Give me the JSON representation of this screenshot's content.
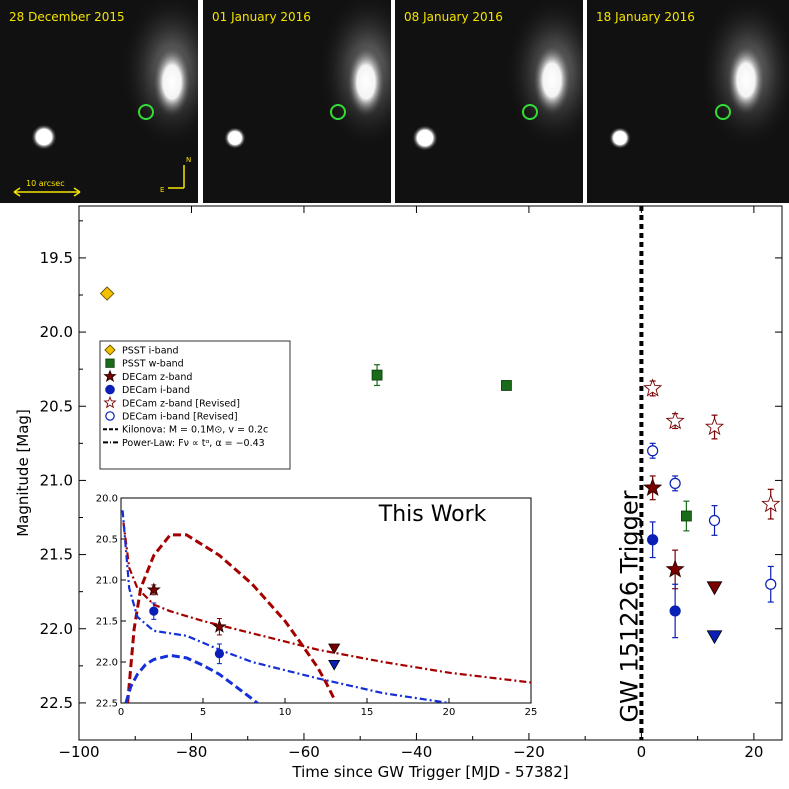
{
  "image_panels": [
    {
      "date": "28 December 2015",
      "scale_label": "10 arcsec",
      "north_label": "N",
      "east_label": "E"
    },
    {
      "date": "01 January 2016"
    },
    {
      "date": "08 January 2016"
    },
    {
      "date": "18 January 2016"
    }
  ],
  "colors": {
    "pssti": "#f2c200",
    "psstw": "#1a6b1a",
    "decam_z": "#7a0000",
    "decam_i": "#0a1fb5",
    "kilonova_z": "#a50000",
    "kilonova_i": "#1530d8",
    "marker_circle": "#33dd33"
  },
  "chart_data": [
    {
      "type": "scatter",
      "xlabel": "Time since GW Trigger [MJD - 57382]",
      "ylabel": "Magnitude [Mag]",
      "xlim": [
        -100,
        25
      ],
      "ylim": [
        22.75,
        19.15
      ],
      "y_inverted": true,
      "xticks": [
        -100,
        -80,
        -60,
        -40,
        -20,
        0,
        20
      ],
      "yticks": [
        19.5,
        20.0,
        20.5,
        21.0,
        21.5,
        22.0,
        22.5
      ],
      "grid": false,
      "legend": {
        "position": "left-middle"
      },
      "annotation": {
        "text": "GW 151226 Trigger",
        "x": 0
      },
      "series": [
        {
          "name": "PSST i-band",
          "marker": "diamond",
          "filled": true,
          "color": "#f2c200",
          "points": [
            {
              "x": -95,
              "y": 19.74
            }
          ]
        },
        {
          "name": "PSST w-band",
          "marker": "square",
          "filled": true,
          "color": "#1a6b1a",
          "points": [
            {
              "x": -47,
              "y": 20.29,
              "err": 0.07
            },
            {
              "x": -24,
              "y": 20.36,
              "err": 0.03
            },
            {
              "x": 8,
              "y": 21.24,
              "err": 0.1
            }
          ]
        },
        {
          "name": "DECam z-band",
          "marker": "star",
          "filled": true,
          "color": "#7a0000",
          "points": [
            {
              "x": 2,
              "y": 21.05,
              "err": 0.08
            },
            {
              "x": 6,
              "y": 21.6,
              "err": 0.13
            }
          ]
        },
        {
          "name": "DECam i-band",
          "marker": "circle",
          "filled": true,
          "color": "#0a1fb5",
          "points": [
            {
              "x": 2,
              "y": 21.4,
              "err": 0.12
            },
            {
              "x": 6,
              "y": 21.88,
              "err": 0.18
            }
          ]
        },
        {
          "name": "DECam z-band [Revised]",
          "marker": "star",
          "filled": false,
          "color": "#7a0000",
          "points": [
            {
              "x": 2,
              "y": 20.38,
              "err": 0.05
            },
            {
              "x": 6,
              "y": 20.6,
              "err": 0.05
            },
            {
              "x": 13,
              "y": 20.64,
              "err": 0.08
            },
            {
              "x": 23,
              "y": 21.16,
              "err": 0.1
            }
          ]
        },
        {
          "name": "DECam i-band [Revised]",
          "marker": "circle",
          "filled": false,
          "color": "#0a1fb5",
          "points": [
            {
              "x": 2,
              "y": 20.8,
              "err": 0.05
            },
            {
              "x": 6,
              "y": 21.02,
              "err": 0.05
            },
            {
              "x": 13,
              "y": 21.27,
              "err": 0.1
            },
            {
              "x": 23,
              "y": 21.7,
              "err": 0.12
            }
          ]
        },
        {
          "name": "DECam z-band upper limit",
          "marker": "triangle-down",
          "filled": true,
          "color": "#7a0000",
          "points": [
            {
              "x": 13,
              "y": 21.72
            }
          ]
        },
        {
          "name": "DECam i-band upper limit",
          "marker": "triangle-down",
          "filled": true,
          "color": "#0a1fb5",
          "points": [
            {
              "x": 13,
              "y": 22.05
            }
          ]
        }
      ],
      "legend_lines": [
        {
          "name": "Kilonova: M = 0.1M⊙, v = 0.2c",
          "style": "dashed"
        },
        {
          "name": "Power-Law: Fν ∝ tᵅ, α = −0.43",
          "style": "dashdot"
        }
      ]
    },
    {
      "type": "line",
      "title": "This Work",
      "xlim": [
        0,
        25
      ],
      "ylim": [
        22.5,
        20.0
      ],
      "y_inverted": true,
      "xticks": [
        0,
        5,
        10,
        15,
        20,
        25
      ],
      "yticks": [
        20.0,
        20.5,
        21.0,
        21.5,
        22.0,
        22.5
      ],
      "series": [
        {
          "name": "DECam z-band",
          "marker": "star",
          "color": "#7a0000",
          "points": [
            {
              "x": 2,
              "y": 21.12,
              "err": 0.06
            },
            {
              "x": 6,
              "y": 21.57,
              "err": 0.1
            }
          ]
        },
        {
          "name": "DECam i-band",
          "marker": "circle",
          "color": "#0a1fb5",
          "points": [
            {
              "x": 2,
              "y": 21.38,
              "err": 0.1
            },
            {
              "x": 6,
              "y": 21.9,
              "err": 0.12
            }
          ]
        },
        {
          "name": "DECam z-band upper limit",
          "marker": "triangle-down",
          "color": "#7a0000",
          "points": [
            {
              "x": 13,
              "y": 21.83
            }
          ]
        },
        {
          "name": "DECam i-band upper limit",
          "marker": "triangle-down",
          "color": "#0a1fb5",
          "points": [
            {
              "x": 13,
              "y": 22.03
            }
          ]
        },
        {
          "name": "Kilonova z",
          "style": "dashed",
          "color": "#a50000",
          "x": [
            0.4,
            0.8,
            1.2,
            2.0,
            3.0,
            4.0,
            6.0,
            8.0,
            10.0,
            11.0,
            12.0,
            12.5,
            13.0
          ],
          "y": [
            22.5,
            21.6,
            21.1,
            20.7,
            20.45,
            20.45,
            20.7,
            21.05,
            21.5,
            21.78,
            22.07,
            22.25,
            22.45
          ]
        },
        {
          "name": "Kilonova i",
          "style": "dashed",
          "color": "#1530d8",
          "x": [
            0.3,
            0.6,
            1.0,
            1.5,
            2.0,
            3.0,
            4.0,
            5.0,
            6.0,
            7.0,
            8.0,
            8.6
          ],
          "y": [
            22.5,
            22.3,
            22.15,
            22.03,
            21.97,
            21.92,
            21.95,
            22.04,
            22.15,
            22.3,
            22.45,
            22.55
          ]
        },
        {
          "name": "Power-law z",
          "style": "dashdot",
          "color": "#a50000",
          "x": [
            0.15,
            0.5,
            1.0,
            2.0,
            3.0,
            5.0,
            8.0,
            12.0,
            16.0,
            20.0,
            25.0
          ],
          "y": [
            20.3,
            20.85,
            21.1,
            21.3,
            21.38,
            21.5,
            21.65,
            21.85,
            22.0,
            22.13,
            22.25
          ]
        },
        {
          "name": "Power-law i",
          "style": "dashdot",
          "color": "#1530d8",
          "x": [
            0.1,
            0.5,
            1.0,
            2.0,
            3.0,
            4.0,
            6.0,
            8.0,
            12.0,
            16.0,
            20.0
          ],
          "y": [
            20.15,
            21.1,
            21.45,
            21.62,
            21.65,
            21.68,
            21.85,
            22.0,
            22.2,
            22.38,
            22.5
          ]
        }
      ]
    }
  ]
}
